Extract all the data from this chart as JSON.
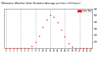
{
  "title": "Milwaukee Weather Solar Radiation Average per Hour (24 Hours)",
  "hours": [
    0,
    1,
    2,
    3,
    4,
    5,
    6,
    7,
    8,
    9,
    10,
    11,
    12,
    13,
    14,
    15,
    16,
    17,
    18,
    19,
    20,
    21,
    22,
    23
  ],
  "solar": [
    0,
    0,
    0,
    0,
    0,
    2,
    8,
    35,
    100,
    190,
    320,
    440,
    510,
    475,
    390,
    285,
    175,
    80,
    20,
    3,
    0,
    0,
    0,
    0
  ],
  "dot_color": "#ff0000",
  "bg_color": "#ffffff",
  "grid_color": "#bbbbbb",
  "legend_color": "#ff0000",
  "ylim": [
    0,
    600
  ],
  "xlim": [
    -0.5,
    23.5
  ],
  "ytick_vals": [
    100,
    200,
    300,
    400,
    500,
    600
  ],
  "grid_hours": [
    0,
    4,
    8,
    12,
    16,
    20
  ],
  "legend_label": "Solar Rad"
}
